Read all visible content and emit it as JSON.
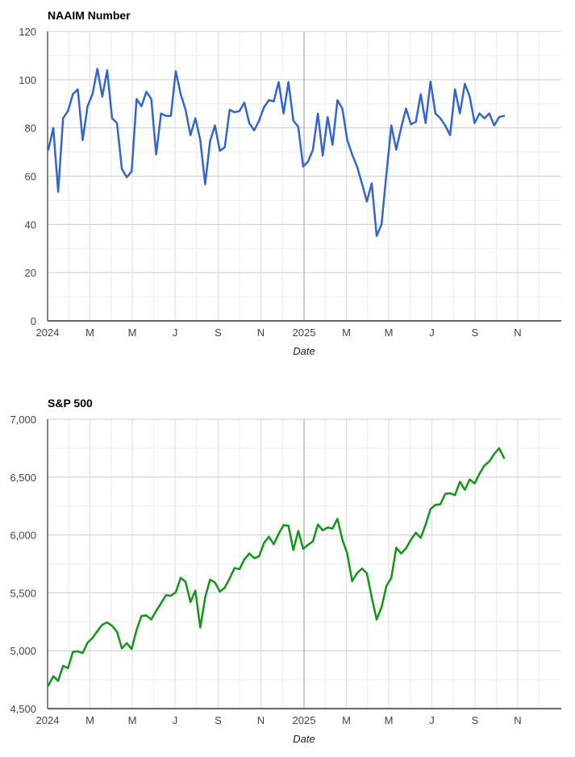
{
  "chart_data": [
    {
      "type": "line",
      "title": "NAAIM Number",
      "xlabel": "Date",
      "ylabel": "",
      "ylim": [
        0,
        120
      ],
      "yticks": [
        "0",
        "20",
        "40",
        "60",
        "80",
        "100",
        "120"
      ],
      "xticks": [
        "2024",
        "M",
        "M",
        "J",
        "S",
        "N",
        "2025",
        "M",
        "M",
        "J",
        "S",
        "N"
      ],
      "grid": true,
      "color": "#3366cc",
      "values": [
        71,
        80,
        53.5,
        84,
        87,
        94,
        96,
        75,
        89,
        94,
        104.5,
        93,
        103.9,
        84,
        82,
        63,
        59.5,
        62,
        92,
        89,
        95,
        92,
        69,
        86,
        85,
        85,
        103.5,
        94,
        87.5,
        77,
        84,
        75,
        56.6,
        74.5,
        81,
        70.5,
        72,
        87.5,
        86.5,
        87,
        90.5,
        82,
        79,
        83,
        88.5,
        91.5,
        91,
        99,
        86,
        99,
        83,
        80.5,
        64,
        66,
        71,
        86,
        68.5,
        84.5,
        73,
        91.5,
        88,
        75,
        69,
        64,
        57,
        49.5,
        57,
        35.2,
        40,
        61,
        81,
        71,
        80,
        88,
        81.5,
        82.5,
        94,
        82,
        99.2,
        86,
        84,
        81,
        77,
        96,
        86,
        98.3,
        93,
        82,
        86,
        84,
        86,
        81,
        84.5,
        85
      ]
    },
    {
      "type": "line",
      "title": "S&P 500",
      "xlabel": "Date",
      "ylabel": "",
      "ylim": [
        4500,
        7000
      ],
      "yticks": [
        "4,500",
        "5,000",
        "5,500",
        "6,000",
        "6,500",
        "7,000"
      ],
      "xticks": [
        "2024",
        "M",
        "M",
        "J",
        "S",
        "N",
        "2025",
        "M",
        "M",
        "J",
        "S",
        "N"
      ],
      "grid": true,
      "color": "#109618",
      "values": [
        4700,
        4780,
        4740,
        4870,
        4850,
        4990,
        4995,
        4980,
        5070,
        5110,
        5170,
        5225,
        5245,
        5215,
        5165,
        5020,
        5065,
        5015,
        5180,
        5300,
        5305,
        5270,
        5345,
        5410,
        5480,
        5475,
        5505,
        5630,
        5595,
        5420,
        5520,
        5200,
        5460,
        5615,
        5590,
        5510,
        5545,
        5625,
        5715,
        5705,
        5790,
        5840,
        5800,
        5815,
        5930,
        5985,
        5920,
        6010,
        6085,
        6080,
        5870,
        6035,
        5880,
        5915,
        5945,
        6090,
        6040,
        6065,
        6055,
        6140,
        5960,
        5840,
        5600,
        5670,
        5710,
        5670,
        5460,
        5270,
        5375,
        5560,
        5630,
        5890,
        5840,
        5885,
        5960,
        6020,
        5975,
        6090,
        6225,
        6260,
        6265,
        6355,
        6360,
        6345,
        6460,
        6390,
        6480,
        6445,
        6530,
        6600,
        6635,
        6700,
        6750,
        6665
      ]
    }
  ]
}
